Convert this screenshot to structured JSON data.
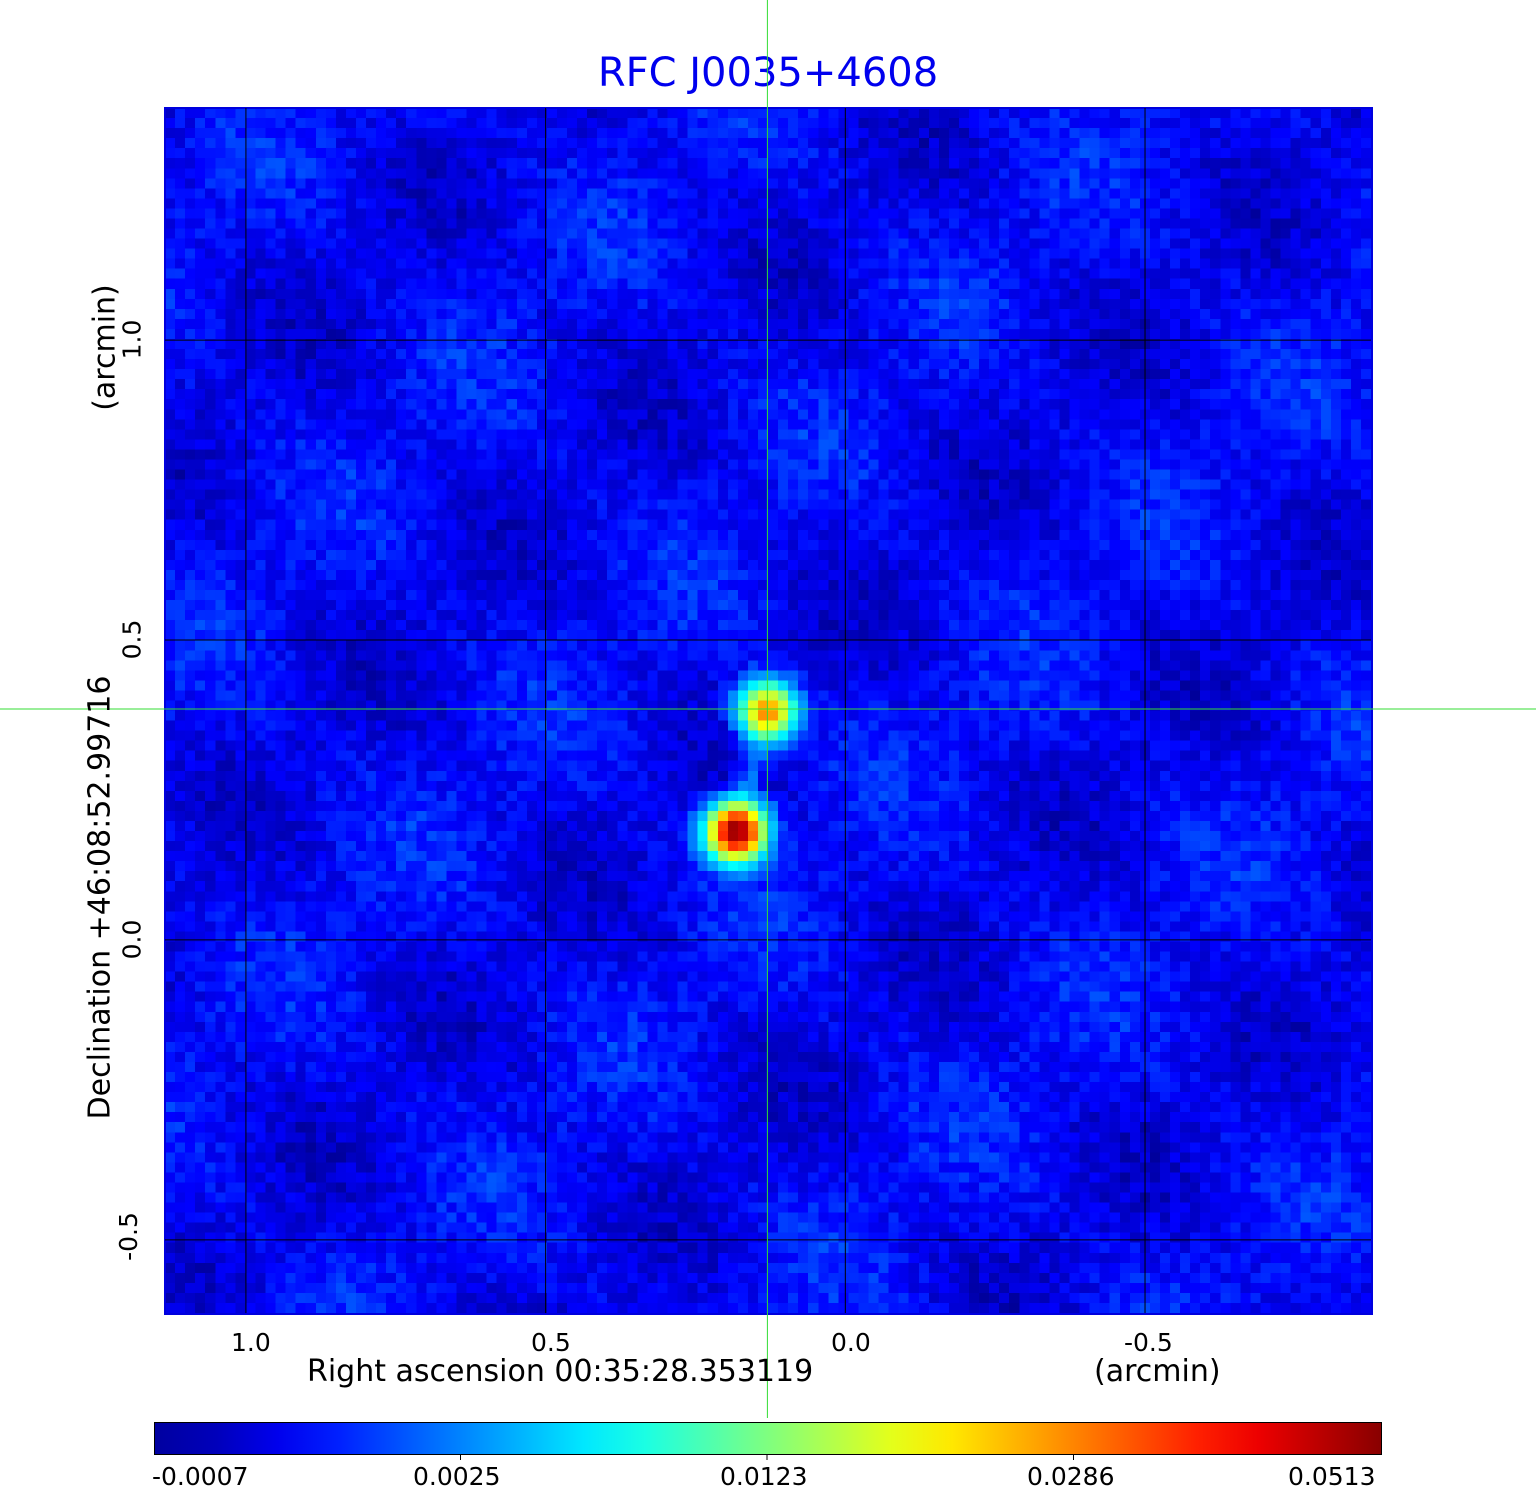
{
  "chart_data": {
    "type": "heatmap",
    "title": "RFC J0035+4608",
    "xlabel": "Right ascension  00:35:28.353119",
    "xunit": "(arcmin)",
    "ylabel": "Declination  +46:08:52.99716",
    "yunit": "(arcmin)",
    "xlim": [
      1.135,
      -0.877
    ],
    "ylim": [
      -0.622,
      1.387
    ],
    "x_ticks": [
      {
        "value": 1.0,
        "label": "1.0"
      },
      {
        "value": 0.5,
        "label": "0.5"
      },
      {
        "value": 0.0,
        "label": "0.0"
      },
      {
        "value": -0.5,
        "label": "-0.5"
      }
    ],
    "y_ticks": [
      {
        "value": 1.0,
        "label": "1.0"
      },
      {
        "value": 0.5,
        "label": "0.5"
      },
      {
        "value": 0.0,
        "label": "0.0"
      },
      {
        "value": -0.5,
        "label": "-0.5"
      }
    ],
    "grid": true,
    "crosshair": {
      "x": 0.13,
      "y": 0.385,
      "color": "#33dd33"
    },
    "sources": [
      {
        "x": 0.13,
        "y": 0.382,
        "peak": 0.028
      },
      {
        "x": 0.182,
        "y": 0.18,
        "peak": 0.0513
      }
    ],
    "colormap": "jet",
    "colorbar": {
      "min": -0.0007,
      "max": 0.0513,
      "tick_labels": [
        "-0.0007",
        "0.0025",
        "0.0123",
        "0.0286",
        "0.0513"
      ]
    },
    "colors": {
      "title": "#0000ee",
      "frame": "#0000dd"
    }
  }
}
